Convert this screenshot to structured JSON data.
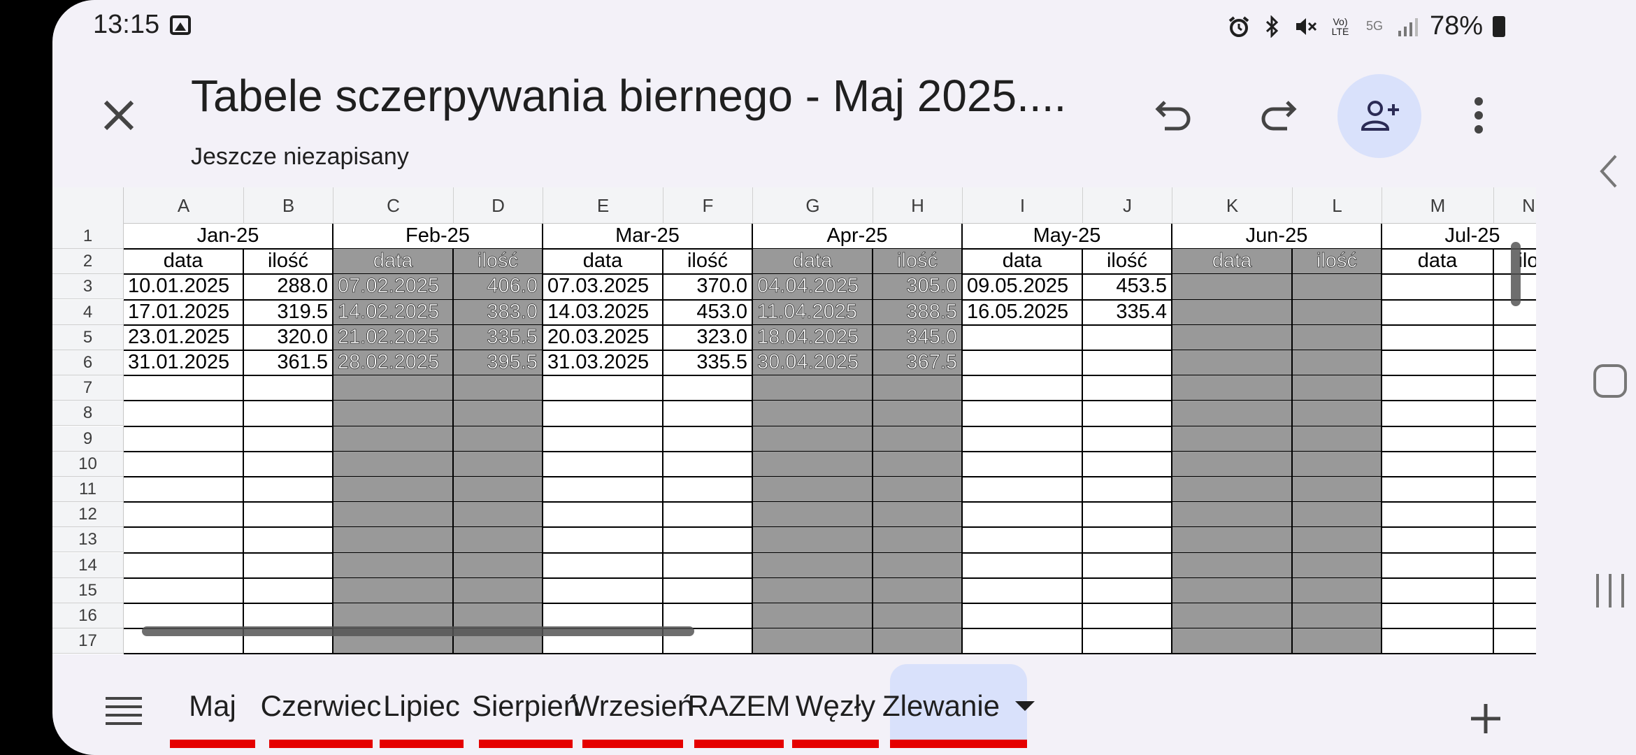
{
  "status_bar": {
    "time": "13:15",
    "battery": "78%",
    "icons": [
      "alarm-icon",
      "bluetooth-icon",
      "mute-icon",
      "volte-icon",
      "5g-icon",
      "signal-icon",
      "battery-icon"
    ],
    "volte_label": "Vo) LTE",
    "net_label": "5G"
  },
  "header": {
    "title": "Tabele sczerpywania biernego - Maj 2025....",
    "subtitle": "Jeszcze niezapisany"
  },
  "grid": {
    "columns": [
      "A",
      "B",
      "C",
      "D",
      "E",
      "F",
      "G",
      "H",
      "I",
      "J",
      "K",
      "L",
      "M",
      "N"
    ],
    "rows": [
      "1",
      "2",
      "3",
      "4",
      "5",
      "6",
      "7",
      "8",
      "9",
      "10",
      "11",
      "12",
      "13",
      "14",
      "15",
      "16",
      "17"
    ],
    "months": [
      "Jan-25",
      "Feb-25",
      "Mar-25",
      "Apr-25",
      "May-25",
      "Jun-25",
      "Jul-25"
    ],
    "sub_header_date": "data",
    "sub_header_qty": "ilość",
    "sub_header_qty_partial": "ilo",
    "data": {
      "jan": [
        [
          "10.01.2025",
          "288.0"
        ],
        [
          "17.01.2025",
          "319.5"
        ],
        [
          "23.01.2025",
          "320.0"
        ],
        [
          "31.01.2025",
          "361.5"
        ]
      ],
      "feb": [
        [
          "07.02.2025",
          "406.0"
        ],
        [
          "14.02.2025",
          "383.0"
        ],
        [
          "21.02.2025",
          "335.5"
        ],
        [
          "28.02.2025",
          "395.5"
        ]
      ],
      "mar": [
        [
          "07.03.2025",
          "370.0"
        ],
        [
          "14.03.2025",
          "453.0"
        ],
        [
          "20.03.2025",
          "323.0"
        ],
        [
          "31.03.2025",
          "335.5"
        ]
      ],
      "apr": [
        [
          "04.04.2025",
          "305.0"
        ],
        [
          "11.04.2025",
          "388.5"
        ],
        [
          "18.04.2025",
          "345.0"
        ],
        [
          "30.04.2025",
          "367.5"
        ]
      ],
      "may": [
        [
          "09.05.2025",
          "453.5"
        ],
        [
          "16.05.2025",
          "335.4"
        ]
      ]
    },
    "shade_color": "#999999"
  },
  "sheet_tabs": {
    "tabs": [
      "Maj",
      "Czerwiec",
      "Lipiec",
      "Sierpień",
      "Wrzesień",
      "RAZEM",
      "Węzły",
      "Zlewanie"
    ],
    "active": "Zlewanie",
    "underline_color": "#e50000",
    "active_bg": "#d9e1fb"
  }
}
